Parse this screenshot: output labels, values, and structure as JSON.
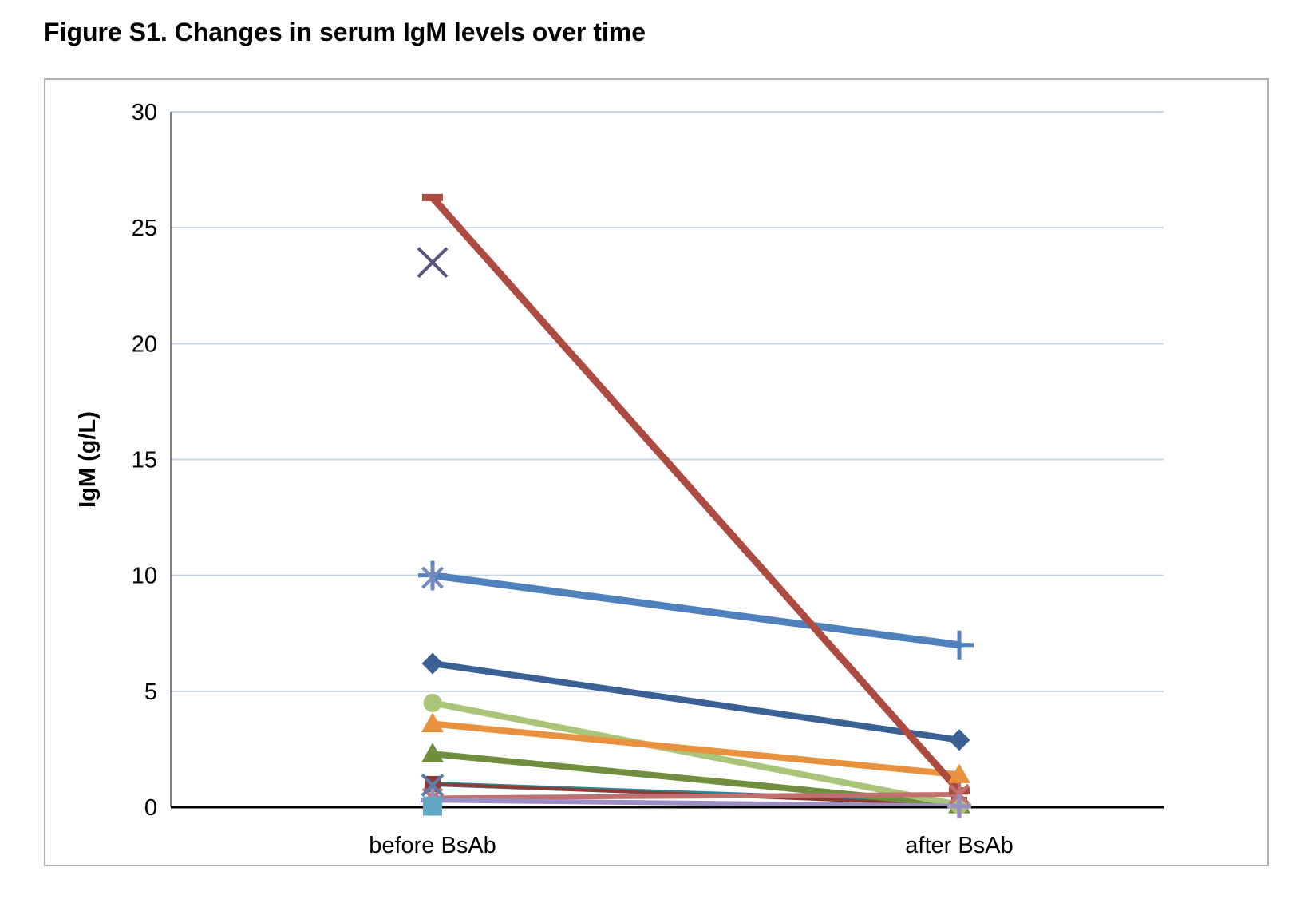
{
  "figure": {
    "title": "Figure S1. Changes in serum IgM levels over time"
  },
  "chart_data": {
    "type": "line",
    "subtype": "paired-slope-chart",
    "title": "Figure S1. Changes in serum IgM levels over time",
    "categories": [
      "before BsAb",
      "after BsAb"
    ],
    "xlabel": "",
    "ylabel": "IgM (g/L)",
    "ylim": [
      0,
      30
    ],
    "yticks": [
      0,
      5,
      10,
      15,
      20,
      25,
      30
    ],
    "grid": "horizontal",
    "legend": "none",
    "axis_colors": {
      "gridline": "#c7d5e8",
      "y_axis_line": "#808080",
      "x_axis_line": "#000000",
      "frame_border": "#b0b0b0"
    },
    "series": [
      {
        "name": "patient teal line",
        "marker": "none",
        "color": "#2e8593",
        "line_width": 6,
        "marker_size": 0,
        "marker_stroke": 0,
        "values": [
          1.0,
          0.2
        ]
      },
      {
        "name": "patient dark-red square",
        "marker": "square",
        "color": "#8e3b34",
        "line_width": 4,
        "marker_size": 20,
        "marker_stroke": 0,
        "values": [
          1.0,
          0.1
        ]
      },
      {
        "name": "patient olive triangle",
        "marker": "triangle",
        "color": "#6f8f3f",
        "line_width": 8,
        "marker_size": 28,
        "marker_stroke": 0,
        "values": [
          2.3,
          0.1
        ]
      },
      {
        "name": "patient light-green circle",
        "marker": "circle",
        "color": "#a9c578",
        "line_width": 8,
        "marker_size": 23,
        "marker_stroke": 0,
        "values": [
          4.5,
          0.1
        ]
      },
      {
        "name": "patient orange triangle",
        "marker": "triangle",
        "color": "#e8913f",
        "line_width": 8,
        "marker_size": 28,
        "marker_stroke": 0,
        "values": [
          3.6,
          1.4
        ]
      },
      {
        "name": "patient navy diamond",
        "marker": "diamond",
        "color": "#3a6096",
        "line_width": 8,
        "marker_size": 27,
        "marker_stroke": 0,
        "values": [
          6.2,
          2.9
        ]
      },
      {
        "name": "patient steel-blue plus",
        "marker": "plus",
        "color": "#4f81bd",
        "line_width": 9,
        "marker_size": 36,
        "marker_stroke": 5,
        "values": [
          10.0,
          7.0
        ]
      },
      {
        "name": "patient brick dash",
        "marker": "dash",
        "color": "#ae4b41",
        "line_width": 9,
        "marker_size": 26,
        "marker_stroke": 0,
        "values": [
          26.3,
          0.7
        ]
      },
      {
        "name": "patient rose asterisk",
        "marker": "asterisk",
        "color": "#c0716f",
        "line_width": 6,
        "marker_size": 30,
        "marker_stroke": 4.5,
        "values": [
          0.4,
          0.55
        ]
      },
      {
        "name": "patient lavender plus",
        "marker": "plus",
        "color": "#9c8dc4",
        "line_width": 6,
        "marker_size": 30,
        "marker_stroke": 5.5,
        "values": [
          0.3,
          0.05
        ]
      },
      {
        "name": "patient light-blue square",
        "marker": "square",
        "color": "#62a7c4",
        "line_width": 0,
        "marker_size": 24,
        "marker_stroke": 0,
        "values": [
          0.05,
          null
        ]
      },
      {
        "name": "patient slate x",
        "marker": "x",
        "color": "#5c7da8",
        "line_width": 0,
        "marker_size": 26,
        "marker_stroke": 4,
        "values": [
          0.95,
          null
        ]
      },
      {
        "name": "patient light-blue asterisk",
        "marker": "asterisk",
        "color": "#7589be",
        "line_width": 0,
        "marker_size": 32,
        "marker_stroke": 4,
        "values": [
          9.9,
          null
        ]
      },
      {
        "name": "patient indigo x",
        "marker": "x",
        "color": "#565380",
        "line_width": 0,
        "marker_size": 36,
        "marker_stroke": 4,
        "values": [
          23.5,
          null
        ]
      }
    ]
  }
}
